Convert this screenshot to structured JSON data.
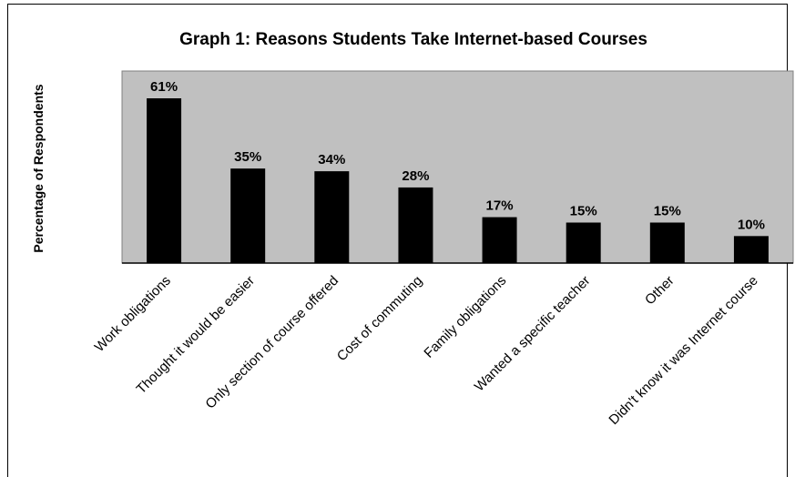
{
  "chart_data": {
    "type": "bar",
    "title": "Graph 1:  Reasons Students Take Internet-based Courses",
    "ylabel": "Percentage of Respondents",
    "xlabel": "",
    "categories": [
      "Work obligations",
      "Thought it would be easier",
      "Only section of course offered",
      "Cost of commuting",
      "Family obligations",
      "Wanted a specific teacher",
      "Other",
      "Didn't know it was Internet course"
    ],
    "values": [
      61,
      35,
      34,
      28,
      17,
      15,
      15,
      10
    ],
    "data_labels": [
      "61%",
      "35%",
      "34%",
      "28%",
      "17%",
      "15%",
      "15%",
      "10%"
    ],
    "ylim": [
      0,
      70
    ],
    "grid": false,
    "legend": "none",
    "colors": {
      "bar": "#000000",
      "plot_background": "#c0c0c0",
      "plot_border": "#808080"
    }
  }
}
